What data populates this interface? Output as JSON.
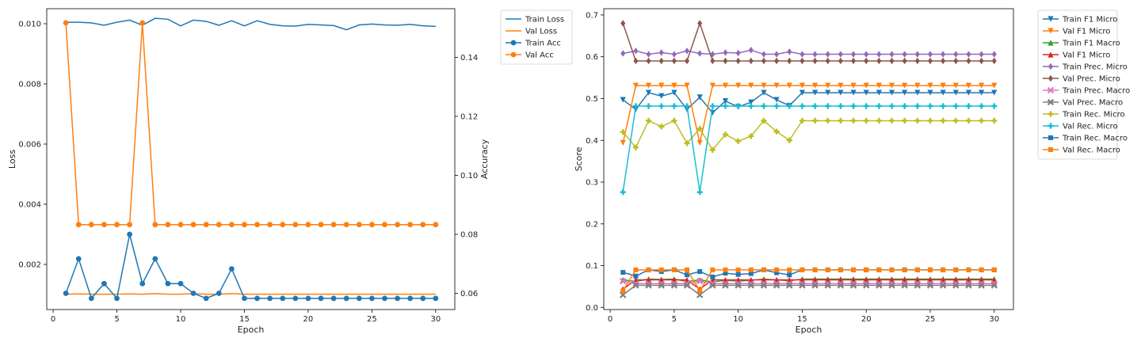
{
  "chart_data": [
    {
      "type": "line",
      "xlabel": "Epoch",
      "ylabel": "Loss",
      "y2label": "Accuracy",
      "xlim": [
        -0.5,
        31.5
      ],
      "ylim": [
        0.0005,
        0.0105
      ],
      "y2lim": [
        0.0545,
        0.1565
      ],
      "xticks": [
        0,
        5,
        10,
        15,
        20,
        25,
        30
      ],
      "yticks": [
        0.002,
        0.004,
        0.006,
        0.008,
        0.01
      ],
      "ytick_labels": [
        "0.002",
        "0.004",
        "0.006",
        "0.008",
        "0.010"
      ],
      "y2ticks": [
        0.06,
        0.08,
        0.1,
        0.12,
        0.14
      ],
      "y2tick_labels": [
        "0.06",
        "0.08",
        "0.10",
        "0.12",
        "0.14"
      ],
      "legend_position": "outside-top-right",
      "x": [
        1,
        2,
        3,
        4,
        5,
        6,
        7,
        8,
        9,
        10,
        11,
        12,
        13,
        14,
        15,
        16,
        17,
        18,
        19,
        20,
        21,
        22,
        23,
        24,
        25,
        26,
        27,
        28,
        29,
        30
      ],
      "series": [
        {
          "name": "Train Loss",
          "axis": "left",
          "color": "#1f77b4",
          "marker": "none",
          "values": [
            0.01005,
            0.01005,
            0.01003,
            0.00995,
            0.01005,
            0.01012,
            0.00995,
            0.01018,
            0.01015,
            0.00993,
            0.01012,
            0.01008,
            0.00995,
            0.0101,
            0.00993,
            0.0101,
            0.00998,
            0.00993,
            0.00992,
            0.00998,
            0.00996,
            0.00994,
            0.0098,
            0.00996,
            0.00999,
            0.00996,
            0.00995,
            0.00998,
            0.00993,
            0.00991
          ]
        },
        {
          "name": "Val Loss",
          "axis": "left",
          "color": "#ff7f0e",
          "marker": "none",
          "values": [
            0.00101,
            0.00102,
            0.00101,
            0.00101,
            0.00101,
            0.00102,
            0.00101,
            0.00103,
            0.00101,
            0.00101,
            0.00103,
            0.00101,
            0.00101,
            0.00103,
            0.00101,
            0.00101,
            0.00101,
            0.00101,
            0.00101,
            0.00101,
            0.00101,
            0.00101,
            0.00101,
            0.00101,
            0.00101,
            0.00101,
            0.00101,
            0.00101,
            0.00101,
            0.00101
          ]
        },
        {
          "name": "Train Acc",
          "axis": "right",
          "color": "#1f77b4",
          "marker": "circle",
          "values": [
            0.06,
            0.0717,
            0.0583,
            0.0633,
            0.0583,
            0.08,
            0.0633,
            0.0717,
            0.0633,
            0.0633,
            0.06,
            0.0583,
            0.06,
            0.0683,
            0.0583,
            0.0583,
            0.0583,
            0.0583,
            0.0583,
            0.0583,
            0.0583,
            0.0583,
            0.0583,
            0.0583,
            0.0583,
            0.0583,
            0.0583,
            0.0583,
            0.0583,
            0.0583
          ]
        },
        {
          "name": "Val Acc",
          "axis": "right",
          "color": "#ff7f0e",
          "marker": "circle",
          "values": [
            0.1517,
            0.0833,
            0.0833,
            0.0833,
            0.0833,
            0.0833,
            0.1517,
            0.0833,
            0.0833,
            0.0833,
            0.0833,
            0.0833,
            0.0833,
            0.0833,
            0.0833,
            0.0833,
            0.0833,
            0.0833,
            0.0833,
            0.0833,
            0.0833,
            0.0833,
            0.0833,
            0.0833,
            0.0833,
            0.0833,
            0.0833,
            0.0833,
            0.0833,
            0.0833
          ]
        }
      ]
    },
    {
      "type": "line",
      "xlabel": "Epoch",
      "ylabel": "Score",
      "xlim": [
        -0.5,
        31.5
      ],
      "ylim": [
        -0.005,
        0.715
      ],
      "xticks": [
        0,
        5,
        10,
        15,
        20,
        25,
        30
      ],
      "yticks": [
        0.0,
        0.1,
        0.2,
        0.3,
        0.4,
        0.5,
        0.6,
        0.7
      ],
      "ytick_labels": [
        "0.0",
        "0.1",
        "0.2",
        "0.3",
        "0.4",
        "0.5",
        "0.6",
        "0.7"
      ],
      "legend_position": "outside-top-right",
      "x": [
        1,
        2,
        3,
        4,
        5,
        6,
        7,
        8,
        9,
        10,
        11,
        12,
        13,
        14,
        15,
        16,
        17,
        18,
        19,
        20,
        21,
        22,
        23,
        24,
        25,
        26,
        27,
        28,
        29,
        30
      ],
      "series": [
        {
          "name": "Train F1 Micro",
          "color": "#1f77b4",
          "marker": "triangle-down",
          "values": [
            0.497,
            0.474,
            0.514,
            0.506,
            0.514,
            0.474,
            0.503,
            0.466,
            0.494,
            0.48,
            0.491,
            0.514,
            0.497,
            0.483,
            0.514,
            0.514,
            0.514,
            0.514,
            0.514,
            0.514,
            0.514,
            0.514,
            0.514,
            0.514,
            0.514,
            0.514,
            0.514,
            0.514,
            0.514,
            0.514
          ]
        },
        {
          "name": "Val F1 Micro",
          "color": "#ff7f0e",
          "marker": "triangle-down",
          "values": [
            0.394,
            0.531,
            0.531,
            0.531,
            0.531,
            0.531,
            0.394,
            0.531,
            0.531,
            0.531,
            0.531,
            0.531,
            0.531,
            0.531,
            0.531,
            0.531,
            0.531,
            0.531,
            0.531,
            0.531,
            0.531,
            0.531,
            0.531,
            0.531,
            0.531,
            0.531,
            0.531,
            0.531,
            0.531,
            0.531
          ]
        },
        {
          "name": "Train F1 Macro",
          "color": "#2ca02c",
          "marker": "triangle-up",
          "values": [
            0.066,
            0.062,
            0.068,
            0.067,
            0.068,
            0.062,
            0.066,
            0.061,
            0.065,
            0.063,
            0.065,
            0.068,
            0.066,
            0.064,
            0.068,
            0.068,
            0.068,
            0.068,
            0.068,
            0.068,
            0.068,
            0.068,
            0.068,
            0.068,
            0.068,
            0.068,
            0.068,
            0.068,
            0.068,
            0.068
          ]
        },
        {
          "name": "Val F1 Micro",
          "color": "#d62728",
          "marker": "triangle-up",
          "values": [
            0.044,
            0.066,
            0.066,
            0.066,
            0.066,
            0.066,
            0.044,
            0.066,
            0.066,
            0.066,
            0.066,
            0.066,
            0.066,
            0.066,
            0.066,
            0.066,
            0.066,
            0.066,
            0.066,
            0.066,
            0.066,
            0.066,
            0.066,
            0.066,
            0.066,
            0.066,
            0.066,
            0.066,
            0.066,
            0.066
          ]
        },
        {
          "name": "Train Prec. Micro",
          "color": "#9467bd",
          "marker": "diamond",
          "values": [
            0.608,
            0.614,
            0.606,
            0.61,
            0.606,
            0.614,
            0.608,
            0.606,
            0.61,
            0.609,
            0.616,
            0.606,
            0.606,
            0.612,
            0.606,
            0.606,
            0.606,
            0.606,
            0.606,
            0.606,
            0.606,
            0.606,
            0.606,
            0.606,
            0.606,
            0.606,
            0.606,
            0.606,
            0.606,
            0.606
          ]
        },
        {
          "name": "Val Prec. Micro",
          "color": "#8c564b",
          "marker": "diamond",
          "values": [
            0.68,
            0.59,
            0.59,
            0.59,
            0.59,
            0.59,
            0.68,
            0.59,
            0.59,
            0.59,
            0.59,
            0.59,
            0.59,
            0.59,
            0.59,
            0.59,
            0.59,
            0.59,
            0.59,
            0.59,
            0.59,
            0.59,
            0.59,
            0.59,
            0.59,
            0.59,
            0.59,
            0.59,
            0.59,
            0.59
          ]
        },
        {
          "name": "Train Prec. Macro",
          "color": "#e377c2",
          "marker": "x",
          "values": [
            0.063,
            0.057,
            0.057,
            0.057,
            0.057,
            0.057,
            0.063,
            0.057,
            0.057,
            0.057,
            0.057,
            0.057,
            0.057,
            0.057,
            0.057,
            0.057,
            0.057,
            0.057,
            0.057,
            0.057,
            0.057,
            0.057,
            0.057,
            0.057,
            0.057,
            0.057,
            0.057,
            0.057,
            0.057,
            0.057
          ]
        },
        {
          "name": "Val Prec. Macro",
          "color": "#7f7f7f",
          "marker": "x",
          "values": [
            0.03,
            0.053,
            0.053,
            0.053,
            0.053,
            0.053,
            0.03,
            0.053,
            0.053,
            0.053,
            0.053,
            0.053,
            0.053,
            0.053,
            0.053,
            0.053,
            0.053,
            0.053,
            0.053,
            0.053,
            0.053,
            0.053,
            0.053,
            0.053,
            0.053,
            0.053,
            0.053,
            0.053,
            0.053,
            0.053
          ]
        },
        {
          "name": "Train Rec. Micro",
          "color": "#bcbd22",
          "marker": "plus",
          "values": [
            0.42,
            0.383,
            0.447,
            0.433,
            0.447,
            0.393,
            0.428,
            0.377,
            0.414,
            0.398,
            0.41,
            0.447,
            0.421,
            0.4,
            0.447,
            0.447,
            0.447,
            0.447,
            0.447,
            0.447,
            0.447,
            0.447,
            0.447,
            0.447,
            0.447,
            0.447,
            0.447,
            0.447,
            0.447,
            0.447
          ]
        },
        {
          "name": "Val Rec. Micro",
          "color": "#17becf",
          "marker": "plus",
          "values": [
            0.276,
            0.482,
            0.482,
            0.482,
            0.482,
            0.482,
            0.276,
            0.482,
            0.482,
            0.482,
            0.482,
            0.482,
            0.482,
            0.482,
            0.482,
            0.482,
            0.482,
            0.482,
            0.482,
            0.482,
            0.482,
            0.482,
            0.482,
            0.482,
            0.482,
            0.482,
            0.482,
            0.482,
            0.482,
            0.482
          ]
        },
        {
          "name": "Train Rec. Macro",
          "color": "#1f77b4",
          "marker": "square",
          "values": [
            0.084,
            0.075,
            0.09,
            0.086,
            0.09,
            0.078,
            0.086,
            0.073,
            0.082,
            0.079,
            0.081,
            0.09,
            0.083,
            0.078,
            0.09,
            0.09,
            0.09,
            0.09,
            0.09,
            0.09,
            0.09,
            0.09,
            0.09,
            0.09,
            0.09,
            0.09,
            0.09,
            0.09,
            0.09,
            0.09
          ]
        },
        {
          "name": "Val Rec. Macro",
          "color": "#ff7f0e",
          "marker": "square",
          "values": [
            0.04,
            0.09,
            0.09,
            0.09,
            0.09,
            0.09,
            0.04,
            0.09,
            0.09,
            0.09,
            0.09,
            0.09,
            0.09,
            0.09,
            0.09,
            0.09,
            0.09,
            0.09,
            0.09,
            0.09,
            0.09,
            0.09,
            0.09,
            0.09,
            0.09,
            0.09,
            0.09,
            0.09,
            0.09,
            0.09
          ]
        }
      ]
    }
  ]
}
